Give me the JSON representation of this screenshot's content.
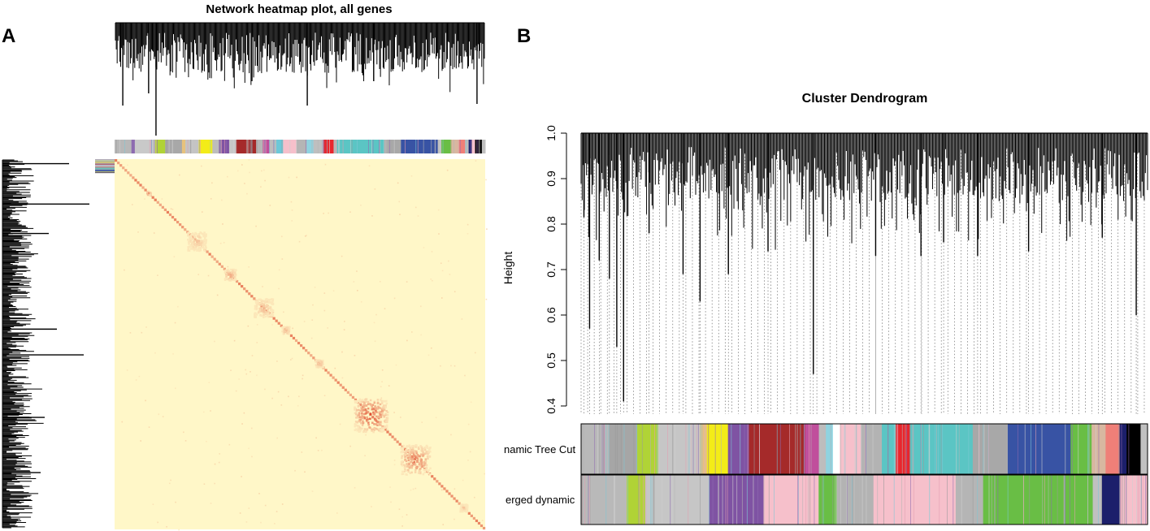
{
  "chart_data": [
    {
      "panel": "A",
      "type": "heatmap",
      "title": "Network heatmap plot, all genes",
      "row_dendrogram": "top",
      "column_dendrogram": "left",
      "color_low": "#fff7c8",
      "color_high": "#d9290f",
      "module_bar": [
        {
          "color": "#b8b8b8",
          "weight": 5
        },
        {
          "color": "#8e6bb0",
          "weight": 1
        },
        {
          "color": "#c9c9c9",
          "weight": 6
        },
        {
          "color": "#b0d336",
          "weight": 3
        },
        {
          "color": "#a8a8a8",
          "weight": 5
        },
        {
          "color": "#e7c27d",
          "weight": 1
        },
        {
          "color": "#c4c4c4",
          "weight": 4
        },
        {
          "color": "#f3ec18",
          "weight": 4
        },
        {
          "color": "#bdbdbd",
          "weight": 2
        },
        {
          "color": "#7f53a3",
          "weight": 3
        },
        {
          "color": "#c7c7c7",
          "weight": 2
        },
        {
          "color": "#a52a2a",
          "weight": 6
        },
        {
          "color": "#b5b5b5",
          "weight": 2
        },
        {
          "color": "#c04f9c",
          "weight": 2
        },
        {
          "color": "#bdbdbd",
          "weight": 2
        },
        {
          "color": "#6cc8d8",
          "weight": 2
        },
        {
          "color": "#f6c0cb",
          "weight": 4
        },
        {
          "color": "#b5b5b5",
          "weight": 3
        },
        {
          "color": "#8fd3e0",
          "weight": 2
        },
        {
          "color": "#bfbfbf",
          "weight": 3
        },
        {
          "color": "#e8262d",
          "weight": 3
        },
        {
          "color": "#b7b7b7",
          "weight": 1
        },
        {
          "color": "#5bc5c4",
          "weight": 14
        },
        {
          "color": "#a8a8a8",
          "weight": 5
        },
        {
          "color": "#3853a4",
          "weight": 11
        },
        {
          "color": "#c2c2c2",
          "weight": 1
        },
        {
          "color": "#69be45",
          "weight": 3
        },
        {
          "color": "#d8b7a0",
          "weight": 2
        },
        {
          "color": "#ef7f78",
          "weight": 2
        },
        {
          "color": "#bcbcbc",
          "weight": 1
        },
        {
          "color": "#1c1f6b",
          "weight": 1
        },
        {
          "color": "#f4c1cd",
          "weight": 1
        },
        {
          "color": "#000000",
          "weight": 2
        },
        {
          "color": "#c0c0c0",
          "weight": 1
        }
      ],
      "diagonal_hotspots": [
        {
          "pos": 0.09,
          "intensity": 0.9,
          "size": 0.01
        },
        {
          "pos": 0.22,
          "intensity": 0.3,
          "size": 0.05
        },
        {
          "pos": 0.31,
          "intensity": 0.5,
          "size": 0.03
        },
        {
          "pos": 0.4,
          "intensity": 0.35,
          "size": 0.05
        },
        {
          "pos": 0.46,
          "intensity": 0.5,
          "size": 0.02
        },
        {
          "pos": 0.55,
          "intensity": 0.55,
          "size": 0.02
        },
        {
          "pos": 0.69,
          "intensity": 0.95,
          "size": 0.09
        },
        {
          "pos": 0.81,
          "intensity": 0.7,
          "size": 0.08
        },
        {
          "pos": 0.94,
          "intensity": 0.3,
          "size": 0.02
        }
      ]
    },
    {
      "panel": "B",
      "type": "dendrogram",
      "title": "Cluster Dendrogram",
      "ylabel": "Height",
      "yticks": [
        "0.4",
        "0.5",
        "0.6",
        "0.7",
        "0.8",
        "0.9",
        "1.0"
      ],
      "ylim": [
        0.4,
        1.0
      ],
      "leaf_minima": [
        {
          "x": 0.005,
          "y": 0.815
        },
        {
          "x": 0.015,
          "y": 0.57
        },
        {
          "x": 0.032,
          "y": 0.72
        },
        {
          "x": 0.05,
          "y": 0.68
        },
        {
          "x": 0.063,
          "y": 0.53
        },
        {
          "x": 0.075,
          "y": 0.41
        },
        {
          "x": 0.12,
          "y": 0.78
        },
        {
          "x": 0.18,
          "y": 0.69
        },
        {
          "x": 0.21,
          "y": 0.63
        },
        {
          "x": 0.26,
          "y": 0.69
        },
        {
          "x": 0.33,
          "y": 0.74
        },
        {
          "x": 0.41,
          "y": 0.47
        },
        {
          "x": 0.52,
          "y": 0.73
        },
        {
          "x": 0.6,
          "y": 0.73
        },
        {
          "x": 0.64,
          "y": 0.76
        },
        {
          "x": 0.7,
          "y": 0.73
        },
        {
          "x": 0.79,
          "y": 0.74
        },
        {
          "x": 0.92,
          "y": 0.77
        },
        {
          "x": 0.98,
          "y": 0.6
        }
      ],
      "color_bars": [
        {
          "label": "Dynamic Tree Cut",
          "segments": [
            {
              "color": "#b9b9b9",
              "weight": 4
            },
            {
              "color": "#a6a6a6",
              "weight": 4
            },
            {
              "color": "#b0d336",
              "weight": 3
            },
            {
              "color": "#c6c6c6",
              "weight": 6
            },
            {
              "color": "#e7c27d",
              "weight": 1
            },
            {
              "color": "#f3ec18",
              "weight": 3
            },
            {
              "color": "#7f53a3",
              "weight": 3
            },
            {
              "color": "#a52a2a",
              "weight": 8
            },
            {
              "color": "#c04f9c",
              "weight": 2
            },
            {
              "color": "#bdbdbd",
              "weight": 1
            },
            {
              "color": "#8fd3e0",
              "weight": 1
            },
            {
              "color": "#ffffff",
              "weight": 1
            },
            {
              "color": "#f6c0cb",
              "weight": 3
            },
            {
              "color": "#b3b3b3",
              "weight": 3
            },
            {
              "color": "#5bc5c4",
              "weight": 2
            },
            {
              "color": "#e8262d",
              "weight": 2
            },
            {
              "color": "#5bc5c4",
              "weight": 9
            },
            {
              "color": "#a8a8a8",
              "weight": 5
            },
            {
              "color": "#3853a4",
              "weight": 9
            },
            {
              "color": "#69be45",
              "weight": 3
            },
            {
              "color": "#d8b7a0",
              "weight": 2
            },
            {
              "color": "#ef7f78",
              "weight": 2
            },
            {
              "color": "#1c1f6b",
              "weight": 1
            },
            {
              "color": "#000000",
              "weight": 2
            },
            {
              "color": "#c0c0c0",
              "weight": 1
            }
          ]
        },
        {
          "label": "Merged dynamic",
          "segments": [
            {
              "color": "#b9b9b9",
              "weight": 5
            },
            {
              "color": "#b0d336",
              "weight": 2
            },
            {
              "color": "#c6c6c6",
              "weight": 7
            },
            {
              "color": "#7f53a3",
              "weight": 6
            },
            {
              "color": "#f6c0cb",
              "weight": 6
            },
            {
              "color": "#69be45",
              "weight": 2
            },
            {
              "color": "#b3b3b3",
              "weight": 4
            },
            {
              "color": "#f6c0cb",
              "weight": 9
            },
            {
              "color": "#b5b5b5",
              "weight": 3
            },
            {
              "color": "#69be45",
              "weight": 12
            },
            {
              "color": "#c0c0c0",
              "weight": 1
            },
            {
              "color": "#1c1f6b",
              "weight": 2
            },
            {
              "color": "#f6c0cb",
              "weight": 3
            }
          ]
        }
      ]
    }
  ],
  "panels": {
    "a_label": "A",
    "b_label": "B"
  },
  "clip_labels": {
    "dynamic": "namic Tree Cut",
    "merged": "erged dynamic",
    "height": "Height"
  }
}
